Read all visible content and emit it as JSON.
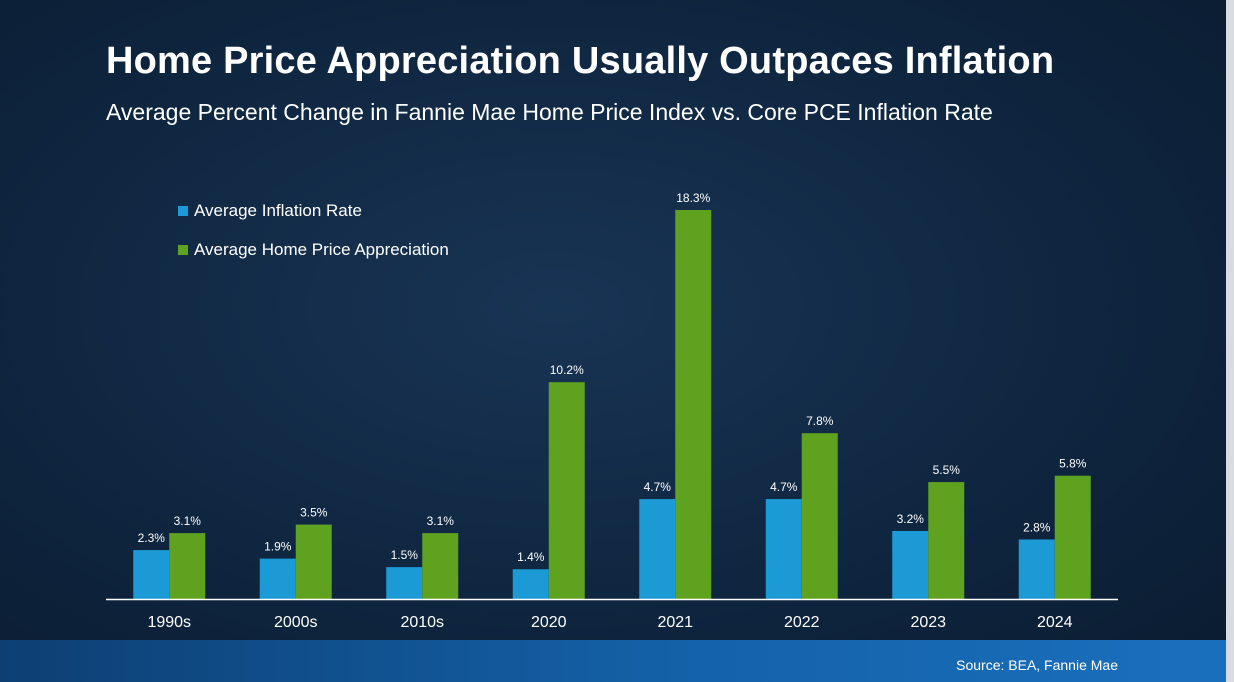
{
  "header": {
    "title": "Home Price Appreciation Usually Outpaces Inflation",
    "subtitle": "Average Percent Change in Fannie Mae Home Price Index vs. Core PCE Inflation Rate"
  },
  "legend": {
    "inflation": "Average Inflation Rate",
    "home_price": "Average Home Price Appreciation"
  },
  "footer": {
    "source": "Source: BEA, Fannie Mae"
  },
  "colors": {
    "inflation": "#1b9ad6",
    "home_price": "#5fa21f",
    "axis": "#ffffff"
  },
  "chart_data": {
    "type": "bar",
    "title": "Home Price Appreciation Usually Outpaces Inflation",
    "subtitle": "Average Percent Change in Fannie Mae Home Price Index vs. Core PCE Inflation Rate",
    "categories": [
      "1990s",
      "2000s",
      "2010s",
      "2020",
      "2021",
      "2022",
      "2023",
      "2024"
    ],
    "series": [
      {
        "name": "Average Inflation Rate",
        "values": [
          2.3,
          1.9,
          1.5,
          1.4,
          4.7,
          4.7,
          3.2,
          2.8
        ],
        "labels": [
          "2.3%",
          "1.9%",
          "1.5%",
          "1.4%",
          "4.7%",
          "4.7%",
          "3.2%",
          "2.8%"
        ]
      },
      {
        "name": "Average Home Price Appreciation",
        "values": [
          3.1,
          3.5,
          3.1,
          10.2,
          18.3,
          7.8,
          5.5,
          5.8
        ],
        "labels": [
          "3.1%",
          "3.5%",
          "3.1%",
          "10.2%",
          "18.3%",
          "7.8%",
          "5.5%",
          "5.8%"
        ]
      }
    ],
    "ylim": [
      0,
      18.3
    ],
    "legend_position": "top-left",
    "grid": false
  }
}
